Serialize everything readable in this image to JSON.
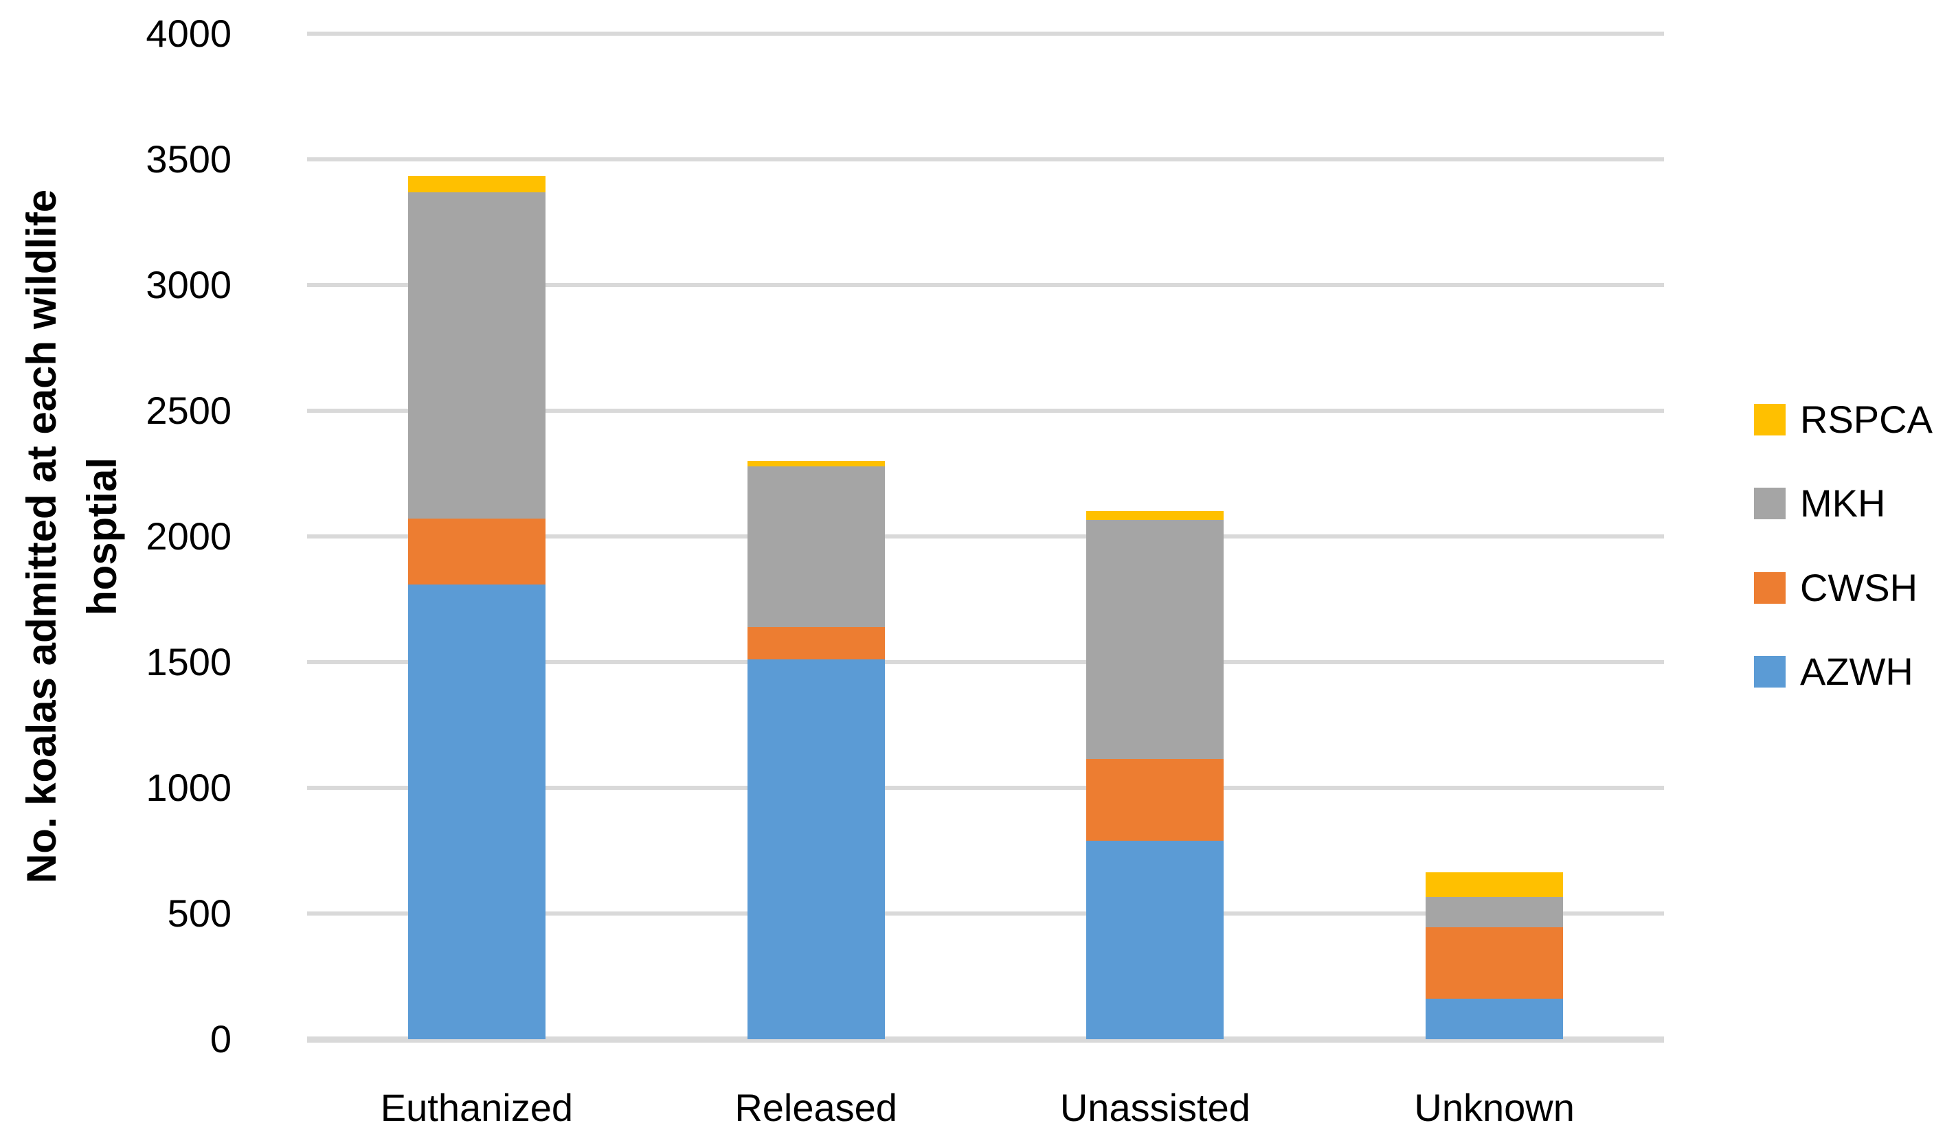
{
  "figure": {
    "background": "#FFFFFF",
    "text_color": "#000000",
    "gridline_color": "#D9D9D9",
    "axis_line_color": "#D9D9D9"
  },
  "chart_data": {
    "type": "bar",
    "stacked": true,
    "categories": [
      "Euthanized",
      "Released",
      "Unassisted",
      "Unknown"
    ],
    "series": [
      {
        "name": "AZWH",
        "color": "#5B9BD5",
        "values": [
          1810,
          1510,
          790,
          160
        ]
      },
      {
        "name": "CWSH",
        "color": "#ED7D31",
        "values": [
          260,
          130,
          325,
          285
        ]
      },
      {
        "name": "MKH",
        "color": "#A5A5A5",
        "values": [
          1300,
          640,
          950,
          120
        ]
      },
      {
        "name": "RSPCA",
        "color": "#FFC000",
        "values": [
          65,
          20,
          35,
          100
        ]
      }
    ],
    "totals": [
      3435,
      2300,
      2100,
      665
    ],
    "xlabel": "",
    "ylabel": "No. koalas admitted at each wildlife hosptial",
    "y_ticks": [
      0,
      500,
      1000,
      1500,
      2000,
      2500,
      3000,
      3500,
      4000
    ],
    "ylim": [
      0,
      4000
    ],
    "grid": true,
    "legend_position": "right",
    "legend_order_top_to_bottom": [
      "RSPCA",
      "MKH",
      "CWSH",
      "AZWH"
    ]
  },
  "y_axis": {
    "title_line1": "No. koalas admitted at each wildlife",
    "title_line2": "hosptial",
    "tick_labels": [
      "0",
      "500",
      "1000",
      "1500",
      "2000",
      "2500",
      "3000",
      "3500",
      "4000"
    ]
  },
  "x_axis": {
    "labels": [
      "Euthanized",
      "Released",
      "Unassisted",
      "Unknown"
    ]
  },
  "legend": {
    "items": [
      {
        "label": "RSPCA",
        "color": "#FFC000"
      },
      {
        "label": "MKH",
        "color": "#A5A5A5"
      },
      {
        "label": "CWSH",
        "color": "#ED7D31"
      },
      {
        "label": "AZWH",
        "color": "#5B9BD5"
      }
    ]
  }
}
